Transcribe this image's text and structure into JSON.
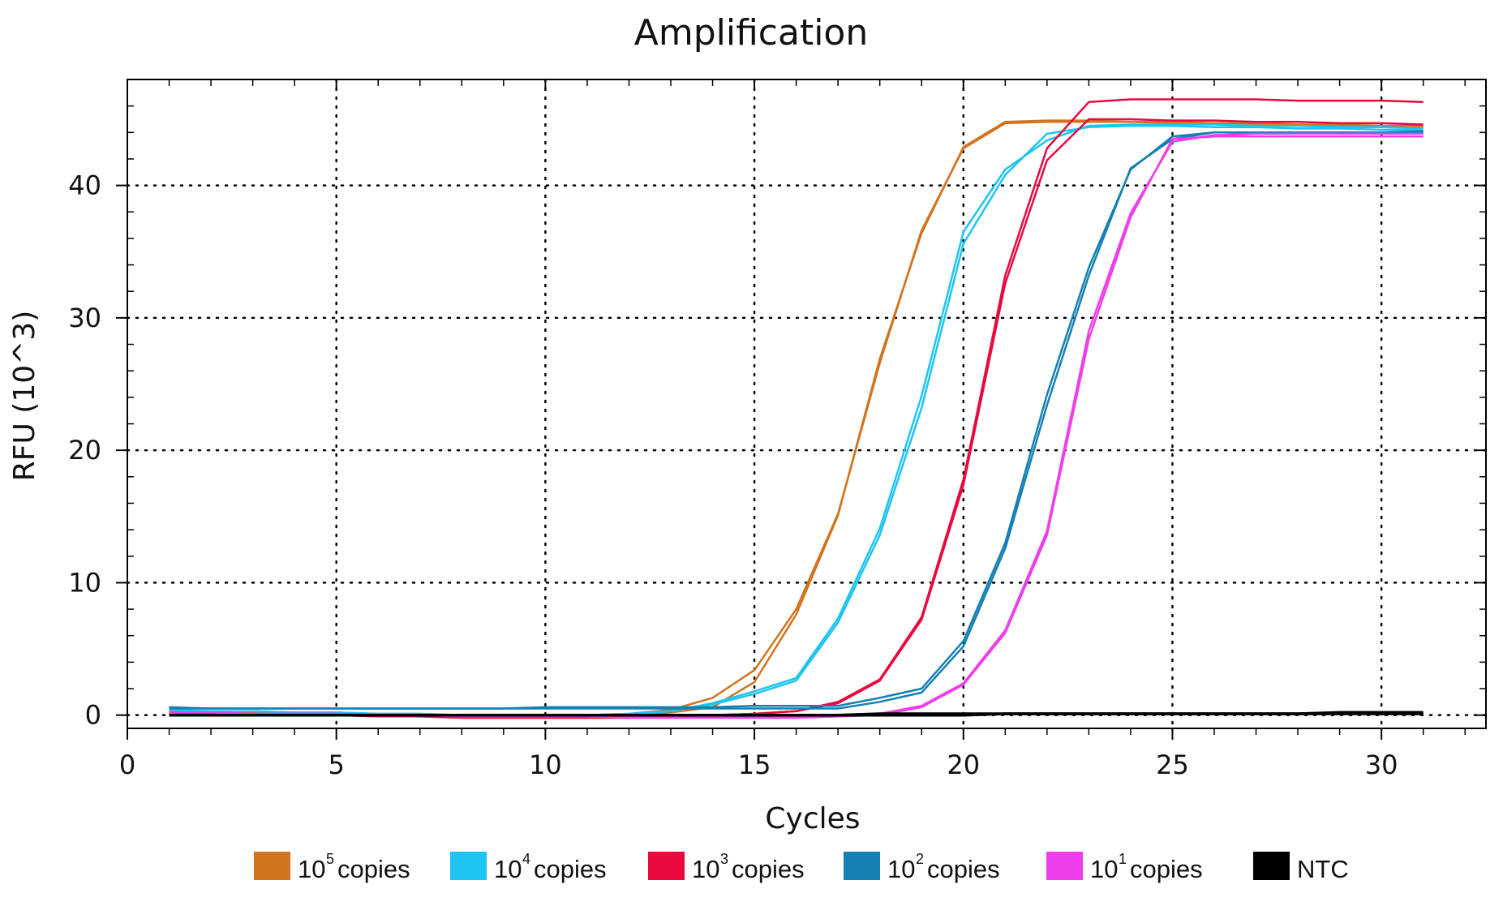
{
  "chart_data": {
    "type": "line",
    "title": "Amplification",
    "xlabel": "Cycles",
    "ylabel": "RFU (10^3)",
    "xlim": [
      0,
      32.5
    ],
    "ylim": [
      -1,
      48
    ],
    "x_ticks": [
      "0",
      "5",
      "10",
      "15",
      "20",
      "25",
      "30"
    ],
    "y_ticks": [
      "0",
      "10",
      "20",
      "30",
      "40"
    ],
    "grid": true,
    "legend_position": "bottom",
    "x": [
      1,
      2,
      3,
      4,
      5,
      6,
      7,
      8,
      9,
      10,
      11,
      12,
      13,
      14,
      15,
      16,
      17,
      18,
      19,
      20,
      21,
      22,
      23,
      24,
      25,
      26,
      27,
      28,
      29,
      30,
      31
    ],
    "series": [
      {
        "name": "10^5 copies",
        "label_base": "10",
        "label_sup": "5",
        "label_rest": "copies",
        "color": "#D2731E",
        "replicates": [
          [
            0.3,
            0.2,
            0.2,
            0.1,
            0.1,
            0.0,
            0.0,
            -0.1,
            -0.1,
            -0.1,
            0.0,
            0.1,
            0.4,
            1.3,
            3.4,
            8.0,
            15.2,
            26.6,
            36.6,
            42.8,
            44.7,
            44.8,
            44.8,
            44.8,
            44.7,
            44.7,
            44.6,
            44.6,
            44.5,
            44.5,
            44.4
          ],
          [
            0.3,
            0.2,
            0.2,
            0.1,
            0.1,
            0.0,
            0.0,
            -0.1,
            -0.1,
            -0.1,
            0.0,
            0.0,
            0.2,
            0.6,
            2.5,
            7.6,
            15.1,
            26.9,
            36.4,
            42.9,
            44.8,
            44.9,
            44.9,
            44.8,
            44.8,
            44.7,
            44.7,
            44.6,
            44.6,
            44.5,
            44.5
          ]
        ]
      },
      {
        "name": "10^4 copies",
        "label_base": "10",
        "label_sup": "4",
        "label_rest": "copies",
        "color": "#1EC4F2",
        "replicates": [
          [
            0.4,
            0.3,
            0.3,
            0.2,
            0.2,
            0.1,
            0.1,
            0.0,
            0.0,
            0.0,
            0.0,
            0.1,
            0.3,
            0.9,
            1.8,
            2.8,
            7.3,
            14.1,
            24.1,
            36.5,
            41.2,
            43.4,
            44.5,
            44.6,
            44.6,
            44.6,
            44.5,
            44.5,
            44.4,
            44.4,
            44.3
          ],
          [
            0.4,
            0.3,
            0.3,
            0.2,
            0.2,
            0.1,
            0.1,
            0.0,
            0.0,
            0.0,
            0.0,
            0.1,
            0.3,
            0.8,
            1.6,
            2.6,
            7.0,
            13.6,
            23.2,
            35.6,
            40.8,
            43.9,
            44.4,
            44.5,
            44.5,
            44.4,
            44.4,
            44.3,
            44.3,
            44.2,
            44.2
          ]
        ]
      },
      {
        "name": "10^3 copies",
        "label_base": "10",
        "label_sup": "3",
        "label_rest": "copies",
        "color": "#E8093F",
        "replicates": [
          [
            0.2,
            0.1,
            0.1,
            0.0,
            0.0,
            -0.1,
            -0.1,
            -0.2,
            -0.2,
            -0.2,
            -0.2,
            -0.2,
            -0.1,
            0.0,
            0.1,
            0.3,
            1.0,
            2.7,
            7.4,
            17.8,
            33.2,
            42.8,
            46.3,
            46.5,
            46.5,
            46.5,
            46.5,
            46.4,
            46.4,
            46.4,
            46.3
          ],
          [
            0.2,
            0.1,
            0.1,
            0.0,
            0.0,
            -0.1,
            -0.1,
            -0.2,
            -0.2,
            -0.2,
            -0.2,
            -0.2,
            -0.1,
            0.0,
            0.1,
            0.3,
            0.9,
            2.6,
            7.2,
            17.4,
            32.6,
            41.9,
            45.0,
            45.0,
            44.9,
            44.9,
            44.8,
            44.8,
            44.7,
            44.7,
            44.6
          ]
        ]
      },
      {
        "name": "10^2 copies",
        "label_base": "10",
        "label_sup": "2",
        "label_rest": "copies",
        "color": "#1580B2",
        "replicates": [
          [
            0.5,
            0.5,
            0.5,
            0.5,
            0.5,
            0.5,
            0.5,
            0.5,
            0.5,
            0.6,
            0.6,
            0.6,
            0.6,
            0.6,
            0.7,
            0.7,
            0.7,
            1.3,
            2.0,
            5.6,
            13.0,
            24.2,
            33.8,
            41.2,
            43.7,
            44.0,
            44.0,
            44.0,
            44.0,
            44.0,
            44.1
          ],
          [
            0.6,
            0.5,
            0.5,
            0.5,
            0.5,
            0.5,
            0.5,
            0.5,
            0.5,
            0.5,
            0.5,
            0.5,
            0.5,
            0.5,
            0.5,
            0.5,
            0.5,
            1.0,
            1.7,
            5.2,
            12.6,
            23.4,
            33.2,
            41.3,
            43.5,
            44.0,
            44.0,
            44.0,
            44.0,
            44.0,
            44.0
          ]
        ]
      },
      {
        "name": "10^1 copies",
        "label_base": "10",
        "label_sup": "1",
        "label_rest": "copies",
        "color": "#EE3DEA",
        "replicates": [
          [
            0.2,
            0.2,
            0.1,
            0.1,
            0.1,
            0.0,
            0.0,
            -0.1,
            -0.1,
            -0.1,
            -0.1,
            -0.2,
            -0.2,
            -0.2,
            -0.2,
            -0.2,
            -0.1,
            0.1,
            0.7,
            2.4,
            6.4,
            13.9,
            29.0,
            37.9,
            43.3,
            43.8,
            43.9,
            43.9,
            43.9,
            43.9,
            43.9
          ],
          [
            0.2,
            0.2,
            0.1,
            0.1,
            0.1,
            0.0,
            0.0,
            -0.1,
            -0.1,
            -0.1,
            -0.1,
            -0.2,
            -0.2,
            -0.2,
            -0.2,
            -0.2,
            -0.1,
            0.0,
            0.6,
            2.3,
            6.2,
            13.6,
            28.4,
            37.6,
            43.5,
            43.7,
            43.7,
            43.7,
            43.7,
            43.7,
            43.7
          ]
        ]
      },
      {
        "name": "NTC",
        "label_base": "NTC",
        "label_sup": "",
        "label_rest": "",
        "color": "#000000",
        "replicates": [
          [
            0.0,
            0.0,
            0.0,
            0.0,
            0.0,
            0.0,
            0.0,
            0.0,
            0.0,
            0.0,
            0.0,
            0.0,
            0.0,
            0.0,
            0.0,
            0.0,
            0.0,
            0.1,
            0.1,
            0.1,
            0.1,
            0.1,
            0.1,
            0.1,
            0.1,
            0.1,
            0.1,
            0.1,
            0.2,
            0.2,
            0.2
          ],
          [
            0.0,
            0.0,
            0.0,
            0.0,
            0.0,
            0.0,
            0.0,
            0.0,
            0.0,
            0.0,
            0.0,
            0.0,
            0.0,
            0.0,
            0.0,
            0.0,
            0.0,
            0.0,
            0.0,
            0.0,
            0.1,
            0.1,
            0.1,
            0.1,
            0.1,
            0.1,
            0.1,
            0.1,
            0.1,
            0.1,
            0.1
          ]
        ]
      }
    ]
  }
}
